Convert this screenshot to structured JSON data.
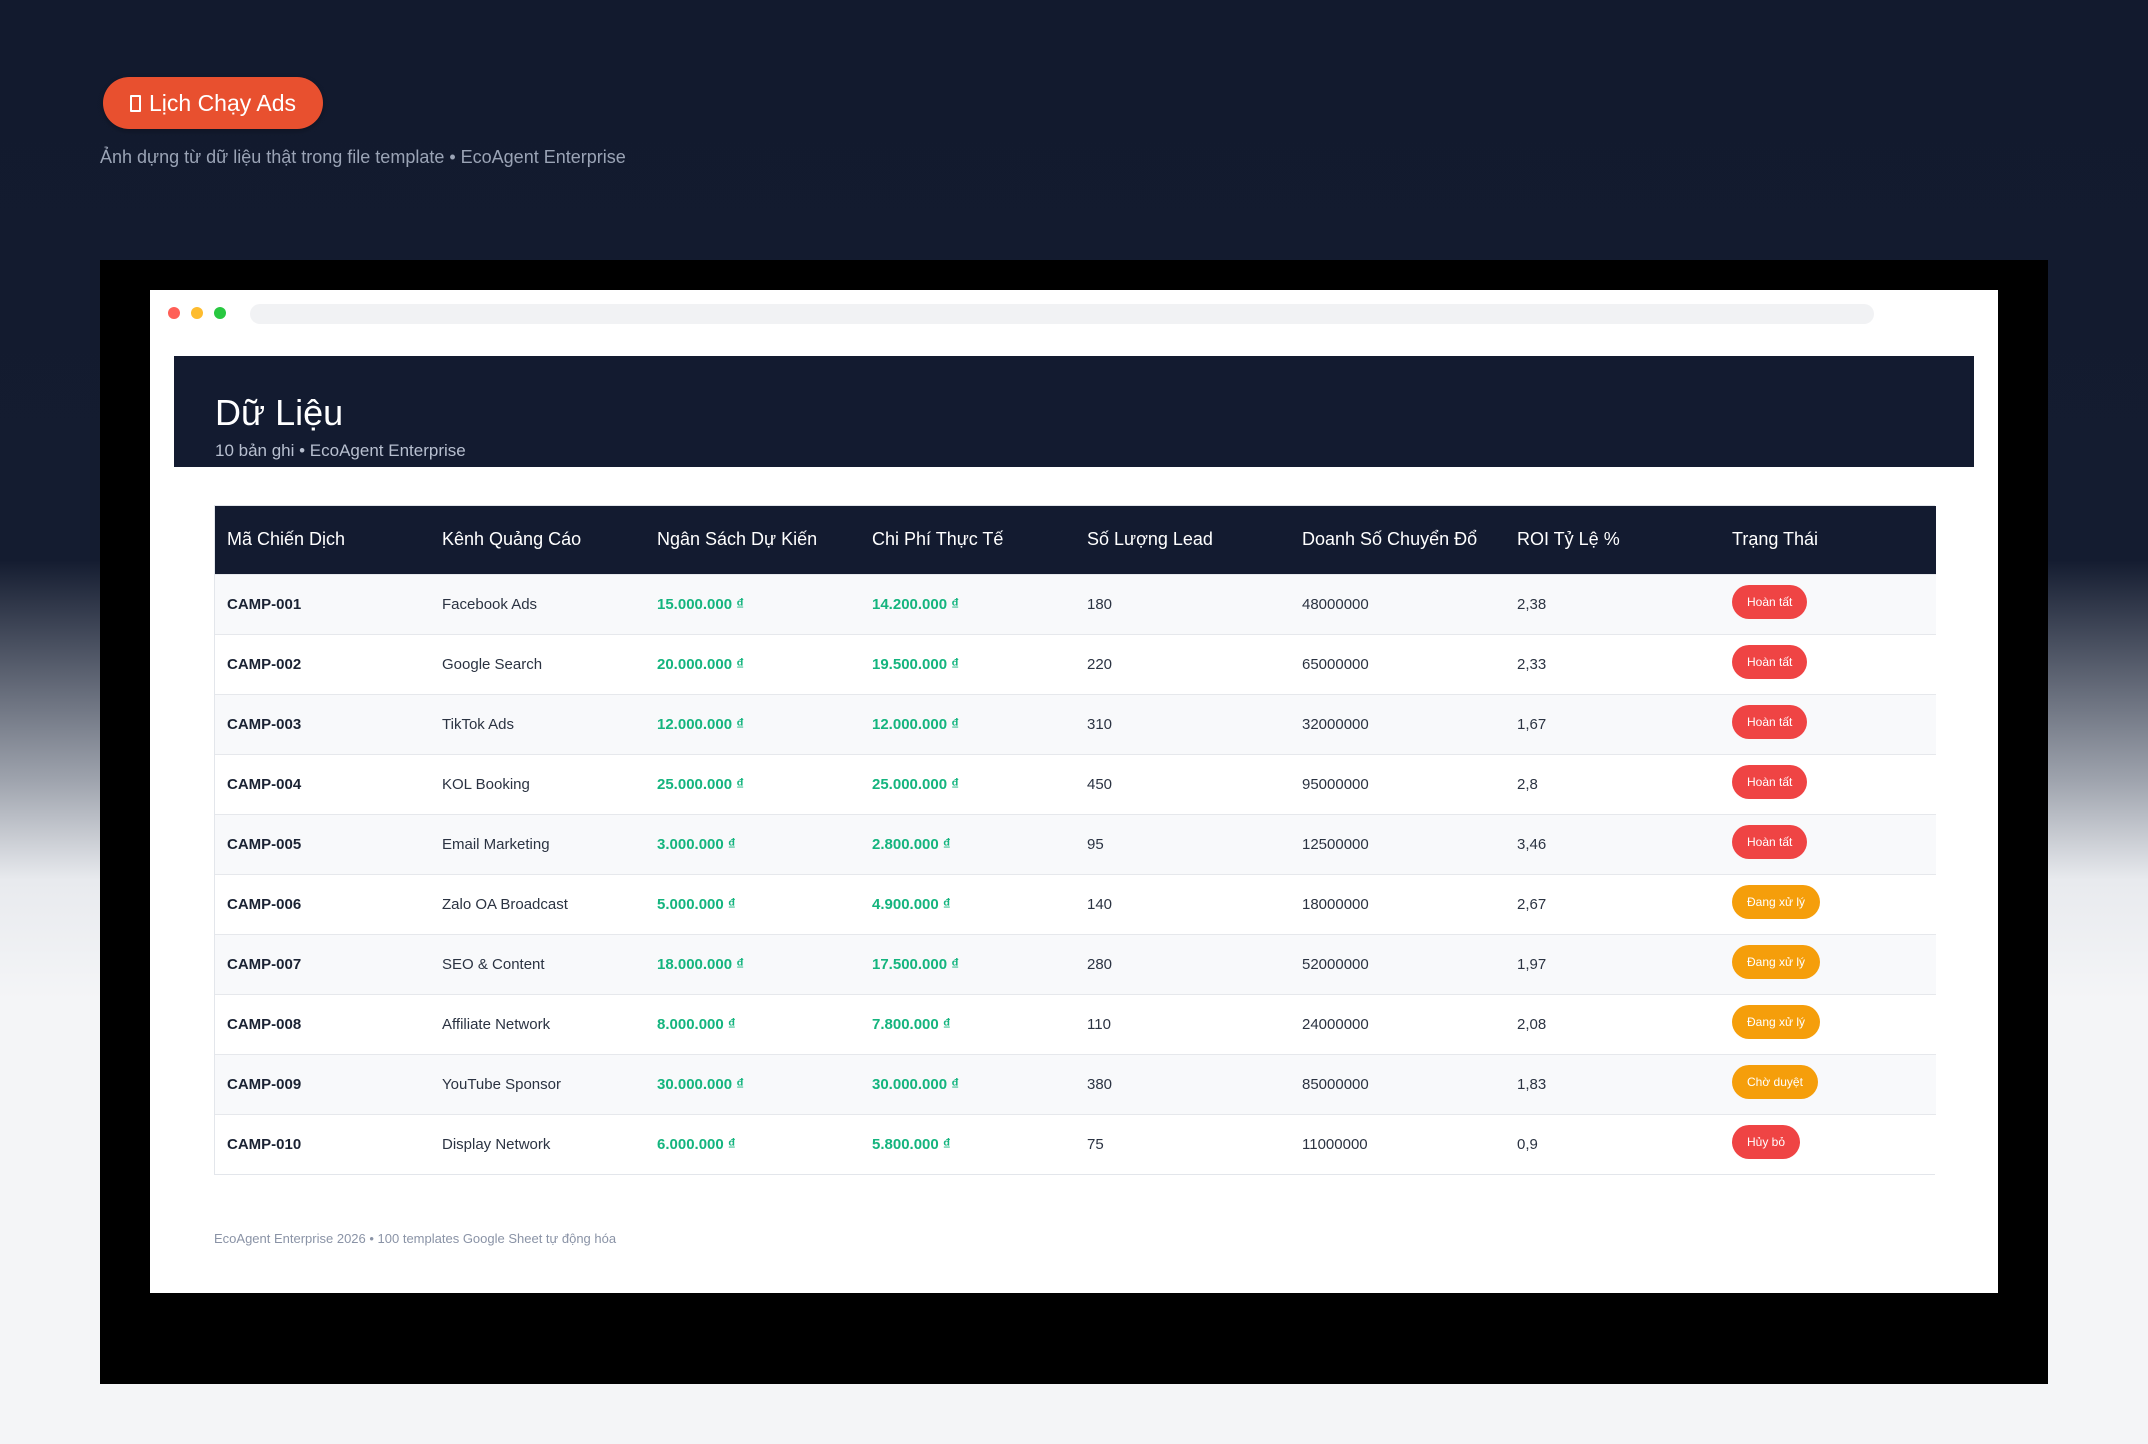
{
  "hero": {
    "badge_label": "Lịch Chạy Ads",
    "badge_icon": "calendar-icon",
    "caption": "Ảnh dựng từ dữ liệu thật trong file template • EcoAgent Enterprise"
  },
  "colors": {
    "badge": "#e8502f",
    "header_bg": "#131b30",
    "money": "#14b47e",
    "status_red": "#ef4444",
    "status_amber": "#f59e0b"
  },
  "header": {
    "title": "Dữ Liệu",
    "subtitle": "10 bản ghi • EcoAgent Enterprise"
  },
  "table": {
    "columns": [
      "Mã Chiến Dịch",
      "Kênh Quảng Cáo",
      "Ngân Sách Dự Kiến",
      "Chi Phí Thực Tế",
      "Số Lượng Lead",
      "Doanh Số Chuyển Đổ",
      "ROI Tỷ Lệ %",
      "Trạng Thái"
    ],
    "rows": [
      {
        "code": "CAMP-001",
        "channel": "Facebook Ads",
        "budget": "15.000.000 ₫",
        "cost": "14.200.000 ₫",
        "leads": "180",
        "revenue": "48000000",
        "roi": "2,38",
        "status": "Hoàn tất",
        "status_type": "done"
      },
      {
        "code": "CAMP-002",
        "channel": "Google Search",
        "budget": "20.000.000 ₫",
        "cost": "19.500.000 ₫",
        "leads": "220",
        "revenue": "65000000",
        "roi": "2,33",
        "status": "Hoàn tất",
        "status_type": "done"
      },
      {
        "code": "CAMP-003",
        "channel": "TikTok Ads",
        "budget": "12.000.000 ₫",
        "cost": "12.000.000 ₫",
        "leads": "310",
        "revenue": "32000000",
        "roi": "1,67",
        "status": "Hoàn tất",
        "status_type": "done"
      },
      {
        "code": "CAMP-004",
        "channel": "KOL Booking",
        "budget": "25.000.000 ₫",
        "cost": "25.000.000 ₫",
        "leads": "450",
        "revenue": "95000000",
        "roi": "2,8",
        "status": "Hoàn tất",
        "status_type": "done"
      },
      {
        "code": "CAMP-005",
        "channel": "Email Marketing",
        "budget": "3.000.000 ₫",
        "cost": "2.800.000 ₫",
        "leads": "95",
        "revenue": "12500000",
        "roi": "3,46",
        "status": "Hoàn tất",
        "status_type": "done"
      },
      {
        "code": "CAMP-006",
        "channel": "Zalo OA Broadcast",
        "budget": "5.000.000 ₫",
        "cost": "4.900.000 ₫",
        "leads": "140",
        "revenue": "18000000",
        "roi": "2,67",
        "status": "Đang xử lý",
        "status_type": "processing"
      },
      {
        "code": "CAMP-007",
        "channel": "SEO & Content",
        "budget": "18.000.000 ₫",
        "cost": "17.500.000 ₫",
        "leads": "280",
        "revenue": "52000000",
        "roi": "1,97",
        "status": "Đang xử lý",
        "status_type": "processing"
      },
      {
        "code": "CAMP-008",
        "channel": "Affiliate Network",
        "budget": "8.000.000 ₫",
        "cost": "7.800.000 ₫",
        "leads": "110",
        "revenue": "24000000",
        "roi": "2,08",
        "status": "Đang xử lý",
        "status_type": "processing"
      },
      {
        "code": "CAMP-009",
        "channel": "YouTube Sponsor",
        "budget": "30.000.000 ₫",
        "cost": "30.000.000 ₫",
        "leads": "380",
        "revenue": "85000000",
        "roi": "1,83",
        "status": "Chờ duyệt",
        "status_type": "pending"
      },
      {
        "code": "CAMP-010",
        "channel": "Display Network",
        "budget": "6.000.000 ₫",
        "cost": "5.800.000 ₫",
        "leads": "75",
        "revenue": "11000000",
        "roi": "0,9",
        "status": "Hủy bỏ",
        "status_type": "cancelled"
      }
    ]
  },
  "footer": {
    "note": "EcoAgent Enterprise 2026 • 100 templates Google Sheet tự động hóa"
  }
}
